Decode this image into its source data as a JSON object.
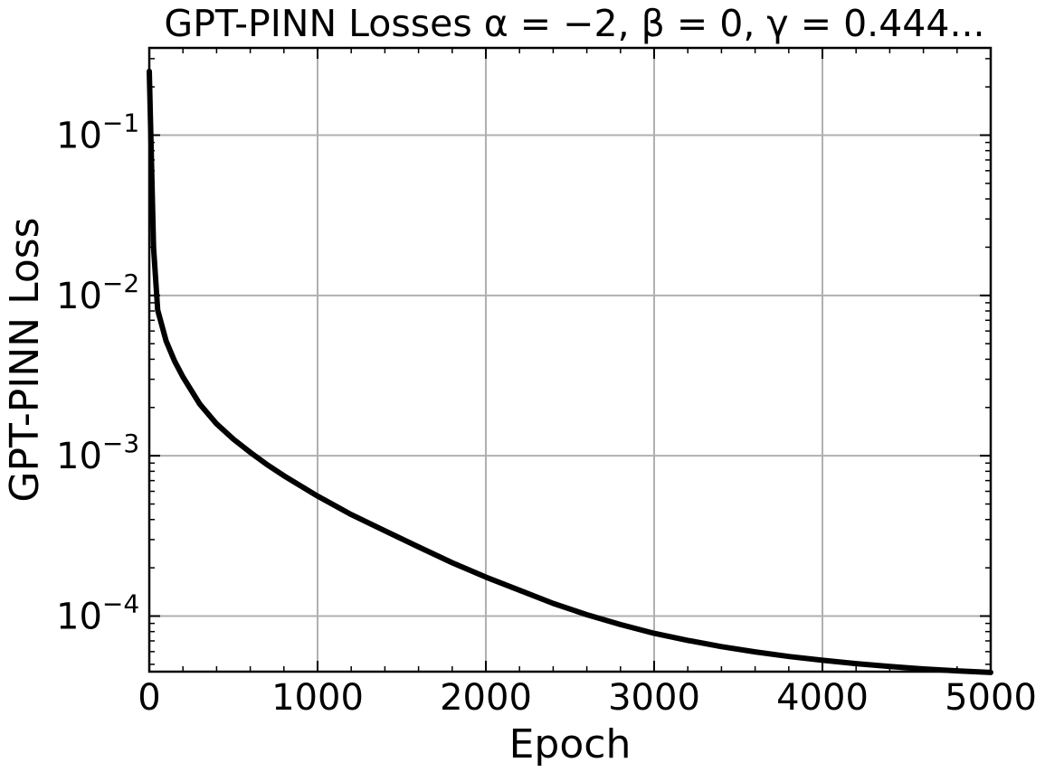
{
  "chart_data": {
    "type": "line",
    "title": "GPT-PINN Losses α = −2, β = 0, γ = 0.444...",
    "xlabel": "Epoch",
    "ylabel": "GPT-PINN Loss",
    "x_scale": "linear",
    "y_scale": "log",
    "xlim": [
      0,
      5000
    ],
    "ylim": [
      4.5e-05,
      0.35
    ],
    "x_ticks": [
      0,
      1000,
      2000,
      3000,
      4000,
      5000
    ],
    "x_tick_labels": [
      "0",
      "1000",
      "2000",
      "3000",
      "4000",
      "5000"
    ],
    "y_ticks": [
      0.1,
      0.01,
      0.001,
      0.0001
    ],
    "y_tick_labels": [
      {
        "base": "10",
        "exp": "−1"
      },
      {
        "base": "10",
        "exp": "−2"
      },
      {
        "base": "10",
        "exp": "−3"
      },
      {
        "base": "10",
        "exp": "−4"
      }
    ],
    "grid": true,
    "series": [
      {
        "color": "#000000",
        "x": [
          0,
          25,
          50,
          100,
          150,
          200,
          300,
          400,
          500,
          600,
          700,
          800,
          1000,
          1200,
          1400,
          1600,
          1800,
          2000,
          2200,
          2400,
          2600,
          2800,
          3000,
          3200,
          3400,
          3600,
          3800,
          4000,
          4200,
          4400,
          4600,
          4800,
          5000
        ],
        "y": [
          0.25,
          0.02,
          0.0081,
          0.0052,
          0.0039,
          0.0031,
          0.0021,
          0.00158,
          0.00127,
          0.00105,
          0.00088,
          0.00075,
          0.00056,
          0.00043,
          0.00034,
          0.00027,
          0.000215,
          0.000175,
          0.000145,
          0.00012,
          0.000102,
          8.85e-05,
          7.8e-05,
          7.05e-05,
          6.45e-05,
          5.98e-05,
          5.6e-05,
          5.3e-05,
          5.05e-05,
          4.85e-05,
          4.68e-05,
          4.55e-05,
          4.45e-05
        ]
      }
    ]
  }
}
